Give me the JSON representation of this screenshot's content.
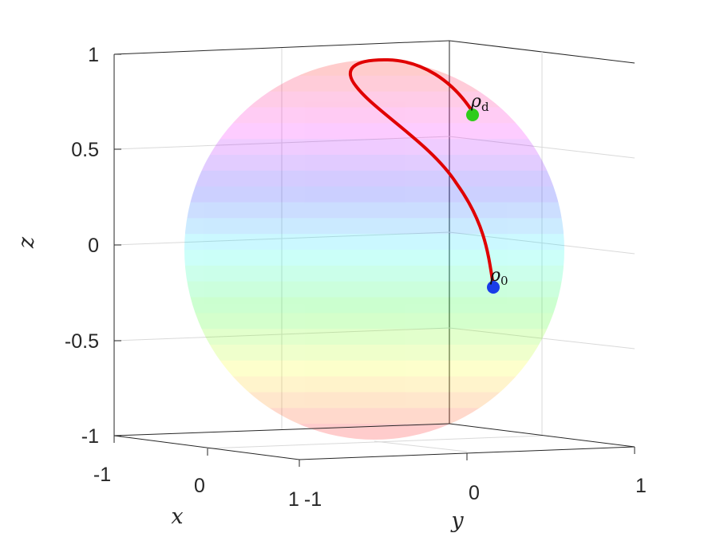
{
  "chart_data": {
    "type": "line",
    "subtype": "bloch-sphere-3d",
    "xlabel": "x",
    "ylabel": "y",
    "zlabel": "z",
    "xlim": [
      -1,
      1
    ],
    "ylim": [
      -1,
      1
    ],
    "zlim": [
      -1,
      1
    ],
    "z_ticks": [
      "1",
      "0.5",
      "0",
      "-0.5",
      "-1"
    ],
    "x_ticks": [
      "-1",
      "0",
      "1"
    ],
    "y_ticks": [
      "-1",
      "0",
      "1"
    ],
    "grid": true,
    "surface_colormap": "hsv-by-z",
    "trajectory_color": "#e00000",
    "start_marker": {
      "label": "ρ",
      "subscript": "0",
      "color": "#1a3ce8",
      "z": -0.22
    },
    "end_marker": {
      "label": "ρ",
      "subscript": "d",
      "color": "#2ecc1a",
      "z": 0.68
    }
  }
}
